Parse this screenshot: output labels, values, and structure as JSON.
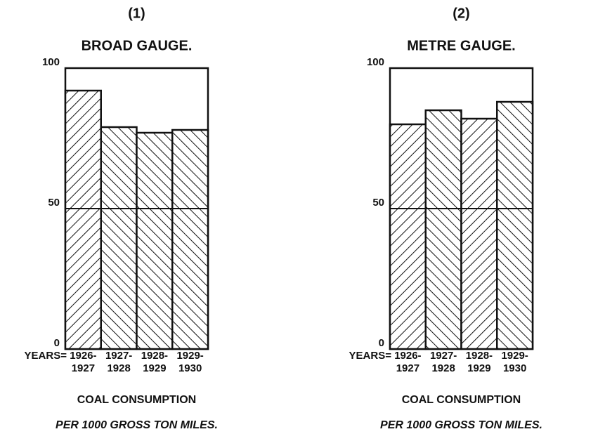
{
  "chart_data": [
    {
      "type": "bar",
      "label": "(1)",
      "title": "BROAD GAUGE.",
      "x_label": "YEARS=",
      "categories": [
        [
          "1926-",
          "1927"
        ],
        [
          "1927-",
          "1928"
        ],
        [
          "1928-",
          "1929"
        ],
        [
          "1929-",
          "1930"
        ]
      ],
      "values": [
        92,
        79,
        77,
        78
      ],
      "hatch": [
        "forward",
        "back",
        "back",
        "back"
      ],
      "ylim": [
        0,
        100
      ],
      "yticks": [
        0,
        50,
        100
      ],
      "grid": true,
      "caption": [
        "COAL CONSUMPTION",
        "PER 1000 GROSS TON MILES."
      ]
    },
    {
      "type": "bar",
      "label": "(2)",
      "title": "METRE GAUGE.",
      "x_label": "YEARS=",
      "categories": [
        [
          "1926-",
          "1927"
        ],
        [
          "1927-",
          "1928"
        ],
        [
          "1928-",
          "1929"
        ],
        [
          "1929-",
          "1930"
        ]
      ],
      "values": [
        80,
        85,
        82,
        88
      ],
      "hatch": [
        "forward",
        "back",
        "forward",
        "back"
      ],
      "ylim": [
        0,
        100
      ],
      "yticks": [
        0,
        50,
        100
      ],
      "grid": true,
      "caption": [
        "COAL CONSUMPTION",
        "PER 1000 GROSS TON MILES."
      ]
    }
  ]
}
